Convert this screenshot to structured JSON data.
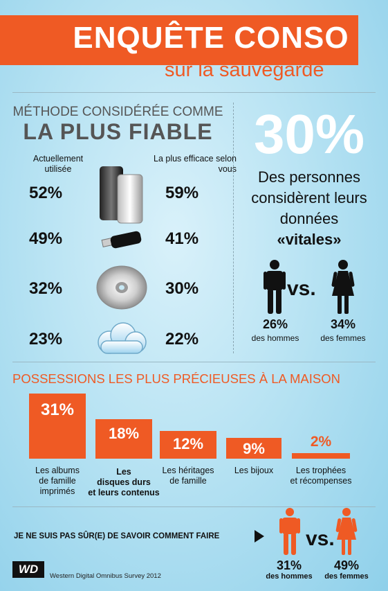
{
  "header": {
    "title": "ENQUÊTE CONSO",
    "subtitle": "sur la sauvegarde"
  },
  "method": {
    "line1": "MÉTHODE CONSIDÉRÉE COMME",
    "line2": "LA PLUS FIABLE",
    "col_left": "Actuellement utilisée",
    "col_right": "La plus efficace selon vous",
    "rows": [
      {
        "icon": "external-hard-drive-icon",
        "current": "52%",
        "best": "59%"
      },
      {
        "icon": "usb-key-icon",
        "current": "49%",
        "best": "41%"
      },
      {
        "icon": "cd-dvd-icon",
        "current": "32%",
        "best": "30%"
      },
      {
        "icon": "cloud-icon",
        "current": "23%",
        "best": "22%"
      }
    ]
  },
  "vital": {
    "big": "30%",
    "text": "Des personnes considèrent leurs données",
    "emphasis": "«vitales»",
    "vs": "vs.",
    "men_pct": "26%",
    "men_label": "des hommes",
    "women_pct": "34%",
    "women_label": "des femmes"
  },
  "possessions": {
    "title": "POSSESSIONS LES PLUS PRÉCIEUSES À LA MAISON",
    "items": [
      {
        "pct": "31%",
        "value": 31,
        "label_l1": "Les albums",
        "label_l2": "de famille",
        "label_l3": "imprimés"
      },
      {
        "pct": "18%",
        "value": 18,
        "label_l1": "Les",
        "label_l2": "disques durs",
        "label_l3": "et leurs contenus"
      },
      {
        "pct": "12%",
        "value": 12,
        "label_l1": "Les héritages",
        "label_l2": "de famille",
        "label_l3": ""
      },
      {
        "pct": "9%",
        "value": 9,
        "label_l1": "Les bijoux",
        "label_l2": "",
        "label_l3": ""
      },
      {
        "pct": "2%",
        "value": 2,
        "label_l1": "Les trophées",
        "label_l2": "et récompenses",
        "label_l3": ""
      }
    ]
  },
  "unsure": {
    "text": "JE NE SUIS PAS SÛR(E) DE SAVOIR COMMENT FAIRE",
    "vs": "vs.",
    "men_pct": "31%",
    "men_label": "des hommes",
    "women_pct": "49%",
    "women_label": "des femmes"
  },
  "footer": {
    "logo": "WD",
    "source": "Western Digital Omnibus Survey 2012"
  },
  "colors": {
    "accent": "#ef5a24",
    "background": "#b8e3f3",
    "text": "#111111"
  }
}
